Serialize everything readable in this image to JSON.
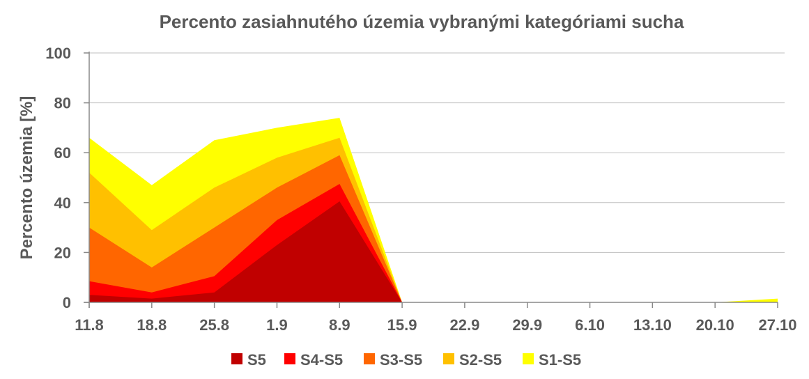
{
  "chart_data": {
    "type": "area",
    "stacked": false,
    "title": "Percento zasiahnutého územia vybranými kategóriami sucha",
    "ylabel": "Percento územia  [%]",
    "xlabel": "",
    "ylim": [
      0,
      100
    ],
    "yticks": [
      0,
      20,
      40,
      60,
      80,
      100
    ],
    "grid": true,
    "legend_position": "bottom",
    "categories": [
      "11.8",
      "18.8",
      "25.8",
      "1.9",
      "8.9",
      "15.9",
      "22.9",
      "29.9",
      "6.10",
      "13.10",
      "20.10",
      "27.10"
    ],
    "series": [
      {
        "name": "S1-S5",
        "color": "#ffff00",
        "values": [
          66,
          47,
          65,
          70,
          74,
          0,
          0,
          0,
          0,
          0,
          0,
          1.5
        ]
      },
      {
        "name": "S2-S5",
        "color": "#ffc000",
        "values": [
          52,
          29,
          46,
          58,
          66,
          0,
          0,
          0,
          0,
          0,
          0,
          0
        ]
      },
      {
        "name": "S3-S5",
        "color": "#ff6600",
        "values": [
          30,
          14,
          30,
          46,
          59,
          0,
          0,
          0,
          0,
          0,
          0,
          0
        ]
      },
      {
        "name": "S4-S5",
        "color": "#ff0000",
        "values": [
          8.5,
          4,
          10.5,
          33,
          47.5,
          0,
          0,
          0,
          0,
          0,
          0,
          0
        ]
      },
      {
        "name": "S5",
        "color": "#c00000",
        "values": [
          3,
          1.5,
          4,
          23,
          40.5,
          0,
          0,
          0,
          0,
          0,
          0,
          0
        ]
      }
    ],
    "legend_order": [
      "S5",
      "S4-S5",
      "S3-S5",
      "S2-S5",
      "S1-S5"
    ]
  }
}
